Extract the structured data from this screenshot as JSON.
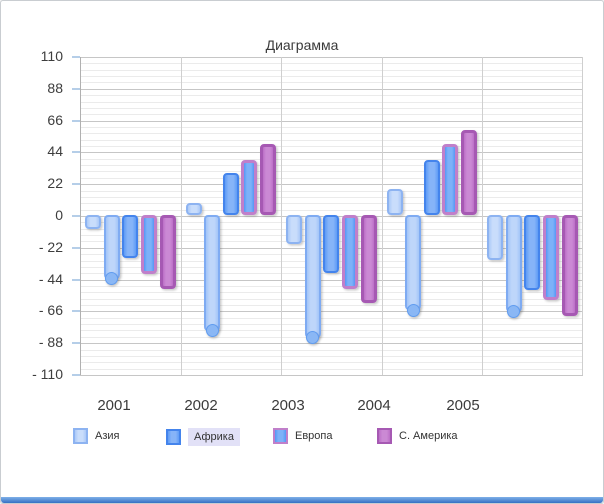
{
  "chart_data": {
    "type": "bar",
    "title": "Диаграмма",
    "categories": [
      "2001",
      "2002",
      "2003",
      "2004",
      "2005"
    ],
    "series": [
      {
        "name": "Азия",
        "slug": "asia",
        "in_legend": true,
        "values": [
          -10,
          8,
          -20,
          18,
          -31
        ],
        "fill": "#abc9f8",
        "inner": "#c9ddfb",
        "border": "#8db3f1",
        "border_width": 2
      },
      {
        "name": "",
        "slug": "highlight",
        "in_legend": false,
        "selection_handle": true,
        "values": [
          -44,
          -80,
          -85,
          -66,
          -67
        ],
        "fill": "#a3c5f8",
        "inner": "#bed6fa",
        "border": "#7fabf2",
        "border_width": 2,
        "handle_fill": "#8ab7f5",
        "handle_border": "#609cf0"
      },
      {
        "name": "Африка",
        "slug": "africa",
        "in_legend": true,
        "values": [
          -30,
          29,
          -40,
          38,
          -52
        ],
        "fill": "#5f9cf6",
        "inner": "#86b4f8",
        "border": "#4484ec",
        "border_width": 2
      },
      {
        "name": "Европа",
        "slug": "europe",
        "in_legend": true,
        "values": [
          -41,
          38,
          -51,
          49,
          -59
        ],
        "fill": "#5598f5",
        "inner": "#7db1f8",
        "border": "#c07fca",
        "border_width": 3
      },
      {
        "name": "С. Америка",
        "slug": "n-america",
        "in_legend": true,
        "values": [
          -51,
          49,
          -61,
          59,
          -70
        ],
        "fill": "#bc6fc7",
        "inner": "#cb89d4",
        "border": "#a659b3",
        "border_width": 3
      }
    ],
    "y_axis": {
      "min": -110,
      "max": 110,
      "major_step": 22,
      "minor_step": 4.4,
      "tick_labels": [
        "110",
        "88",
        "66",
        "44",
        "22",
        "0",
        "- 22",
        "- 44",
        "- 66",
        "- 88",
        "- 110"
      ]
    },
    "x_axis": {
      "labels": [
        "2001",
        "2002",
        "2003",
        "2004",
        "2005"
      ]
    },
    "legend": {
      "position": "bottom",
      "highlight_color": "#e2e1f7",
      "items": [
        {
          "label": "Азия",
          "series": 0,
          "highlighted": false
        },
        {
          "label": "Африка",
          "series": 2,
          "highlighted": true
        },
        {
          "label": "Европа",
          "series": 3,
          "highlighted": false
        },
        {
          "label": "С. Америка",
          "series": 4,
          "highlighted": false
        }
      ]
    },
    "grid": {
      "minor_color": "#ebebeb",
      "major_color": "#c6c6c6",
      "separator_color": "#cfcfcf",
      "axis_line_color": "#b0b0b0",
      "tick_color": "#b5cee8"
    },
    "window": {
      "border_color": "#c9cdd1",
      "bottom_strip_gradient": [
        "#7fb0e8",
        "#3570c4"
      ]
    }
  }
}
